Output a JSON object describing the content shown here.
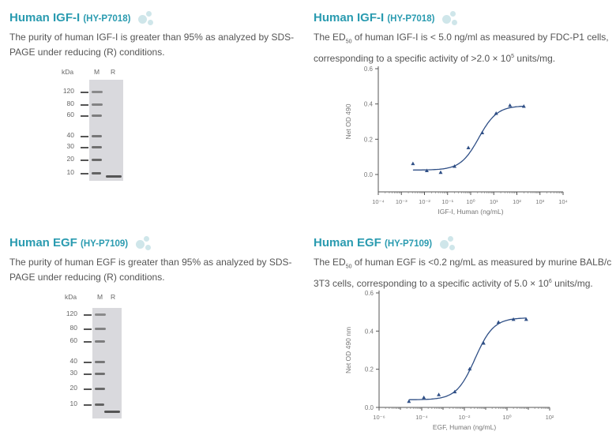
{
  "sections": [
    {
      "title": "Human IGF-I",
      "code": "(HY-P7018)",
      "desc": "The purity of human IGF-I is greater than 95% as analyzed by SDS-PAGE under reducing (R) conditions."
    },
    {
      "title": "Human IGF-I",
      "code": "(HY-P7018)",
      "desc_pre": "The ED",
      "desc_sub": "50",
      "desc_mid": " of human IGF-I is < 5.0 ng/ml as measured by FDC-P1 cells, corresponding to a specific activity of >2.0 × 10",
      "desc_sup": "5",
      "desc_post": " units/mg."
    },
    {
      "title": "Human EGF",
      "code": "(HY-P7109)",
      "desc": "The purity of human EGF is greater than 95% as analyzed by SDS-PAGE under reducing (R) conditions."
    },
    {
      "title": "Human EGF",
      "code": "(HY-P7109)",
      "desc_pre": "The ED",
      "desc_sub": "50",
      "desc_mid": " of human EGF is <0.2 ng/mL as measured by murine BALB/c 3T3 cells, corresponding to a specific activity of 5.0 × 10",
      "desc_sup": "6",
      "desc_post": " units/mg."
    }
  ],
  "gels": [
    {
      "unit": "kDa",
      "lane_m": "M",
      "lane_r": "R",
      "markers": [
        "120",
        "80",
        "60",
        "40",
        "30",
        "20",
        "10"
      ]
    },
    {
      "unit": "kDa",
      "lane_m": "M",
      "lane_r": "R",
      "markers": [
        "120",
        "80",
        "60",
        "40",
        "30",
        "20",
        "10"
      ]
    }
  ],
  "chart_data": [
    {
      "type": "scatter",
      "xscale": "log",
      "xlabel": "IGF-I, Human (ng/mL)",
      "ylabel": "Net OD 490",
      "xlim_log10": [
        -4,
        4
      ],
      "ylim": [
        -0.1,
        0.6
      ],
      "yticks": [
        "0.0",
        "0.2",
        "0.4",
        "0.6"
      ],
      "ytick_values": [
        0,
        0.2,
        0.4,
        0.6
      ],
      "xticks": [
        "10⁻⁴",
        "10⁻³",
        "10⁻²",
        "10⁻¹",
        "10⁰",
        "10¹",
        "10²",
        "10³",
        "10⁴"
      ],
      "x_log10": [
        -2.5,
        -1.9,
        -1.3,
        -0.7,
        -0.1,
        0.5,
        1.1,
        1.7,
        2.3
      ],
      "y": [
        0.06,
        0.02,
        0.01,
        0.045,
        0.15,
        0.235,
        0.345,
        0.39,
        0.385
      ],
      "fit": {
        "bottom": 0.025,
        "top": 0.39,
        "logEC50": 0.35,
        "hill": 1.1
      }
    },
    {
      "type": "scatter",
      "xscale": "log",
      "xlabel": "EGF, Human (ng/mL)",
      "ylabel": "Net OD 490 nm",
      "xlim_log10": [
        -6,
        2
      ],
      "ylim": [
        0,
        0.6
      ],
      "yticks": [
        "0.0",
        "0.2",
        "0.4",
        "0.6"
      ],
      "ytick_values": [
        0,
        0.2,
        0.4,
        0.6
      ],
      "xticks": [
        "10⁻⁶",
        "10⁻⁴",
        "10⁻²",
        "10⁰",
        "10²"
      ],
      "x_log10": [
        -4.6,
        -3.9,
        -3.2,
        -2.45,
        -1.75,
        -1.1,
        -0.4,
        0.3,
        0.9
      ],
      "y": [
        0.03,
        0.05,
        0.065,
        0.08,
        0.2,
        0.335,
        0.445,
        0.46,
        0.46
      ],
      "fit": {
        "bottom": 0.04,
        "top": 0.47,
        "logEC50": -1.5,
        "hill": 1.0
      }
    }
  ]
}
